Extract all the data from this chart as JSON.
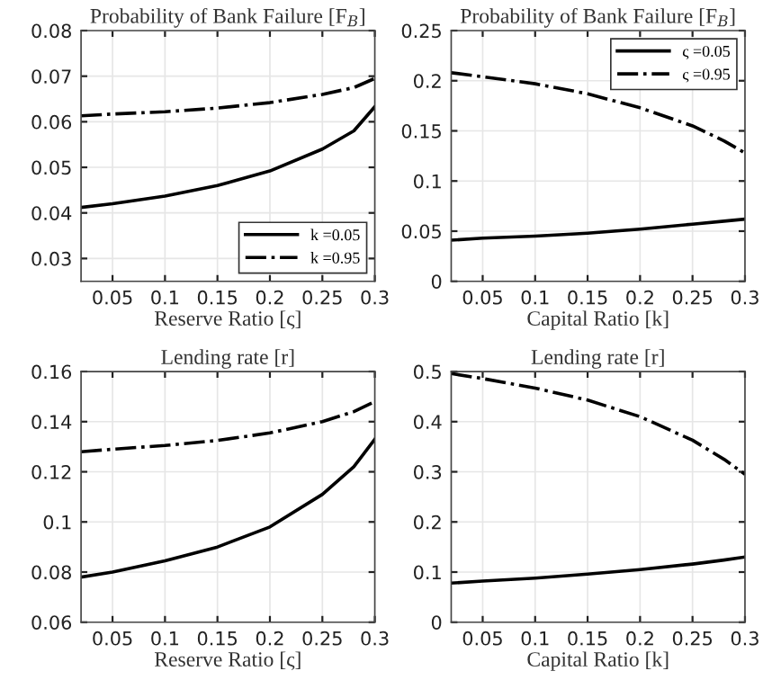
{
  "chart_data": [
    {
      "type": "line",
      "title": "Probability of Bank Failure [F$_{B}$]",
      "xlabel": "Reserve Ratio [ς]",
      "x": [
        0.02,
        0.05,
        0.1,
        0.15,
        0.2,
        0.25,
        0.28,
        0.3
      ],
      "xlim": [
        0.02,
        0.3
      ],
      "xticks": [
        0.05,
        0.1,
        0.15,
        0.2,
        0.25,
        0.3
      ],
      "ylim": [
        0.025,
        0.08
      ],
      "yticks": [
        0.03,
        0.04,
        0.05,
        0.06,
        0.07,
        0.08
      ],
      "grid": true,
      "legend": "bottom right",
      "series": [
        {
          "name": "k =0.05",
          "color": "#000000",
          "line_style": "solid",
          "values": [
            0.0412,
            0.042,
            0.0437,
            0.046,
            0.0492,
            0.054,
            0.058,
            0.0633
          ]
        },
        {
          "name": "k =0.95",
          "color": "#000000",
          "line_style": "dashdot",
          "values": [
            0.0613,
            0.0617,
            0.0622,
            0.063,
            0.0642,
            0.066,
            0.0675,
            0.0695
          ]
        }
      ]
    },
    {
      "type": "line",
      "title": "Probability of Bank Failure [F$_{B}$]",
      "xlabel": "Capital Ratio [k]",
      "x": [
        0.02,
        0.05,
        0.1,
        0.15,
        0.2,
        0.25,
        0.28,
        0.3
      ],
      "xlim": [
        0.02,
        0.3
      ],
      "xticks": [
        0.05,
        0.1,
        0.15,
        0.2,
        0.25,
        0.3
      ],
      "ylim": [
        0,
        0.25
      ],
      "yticks": [
        0,
        0.05,
        0.1,
        0.15,
        0.2,
        0.25
      ],
      "grid": true,
      "legend": "top right",
      "series": [
        {
          "name": "ς =0.05",
          "color": "#000000",
          "line_style": "solid",
          "values": [
            0.041,
            0.043,
            0.045,
            0.048,
            0.052,
            0.057,
            0.06,
            0.062
          ]
        },
        {
          "name": "ς =0.95",
          "color": "#000000",
          "line_style": "dashdot",
          "values": [
            0.208,
            0.204,
            0.197,
            0.187,
            0.173,
            0.155,
            0.14,
            0.128
          ]
        }
      ]
    },
    {
      "type": "line",
      "title": "Lending rate [r]",
      "xlabel": "Reserve Ratio [ς]",
      "x": [
        0.02,
        0.05,
        0.1,
        0.15,
        0.2,
        0.25,
        0.28,
        0.3
      ],
      "xlim": [
        0.02,
        0.3
      ],
      "xticks": [
        0.05,
        0.1,
        0.15,
        0.2,
        0.25,
        0.3
      ],
      "ylim": [
        0.06,
        0.16
      ],
      "yticks": [
        0.06,
        0.08,
        0.1,
        0.12,
        0.14,
        0.16
      ],
      "grid": true,
      "series": [
        {
          "color": "#000000",
          "line_style": "solid",
          "values": [
            0.078,
            0.08,
            0.0845,
            0.09,
            0.098,
            0.111,
            0.122,
            0.133
          ]
        },
        {
          "color": "#000000",
          "line_style": "dashdot",
          "values": [
            0.128,
            0.129,
            0.1305,
            0.1325,
            0.1355,
            0.14,
            0.144,
            0.148
          ]
        }
      ]
    },
    {
      "type": "line",
      "title": "Lending rate [r]",
      "xlabel": "Capital Ratio [k]",
      "x": [
        0.02,
        0.05,
        0.1,
        0.15,
        0.2,
        0.25,
        0.28,
        0.3
      ],
      "xlim": [
        0.02,
        0.3
      ],
      "xticks": [
        0.05,
        0.1,
        0.15,
        0.2,
        0.25,
        0.3
      ],
      "ylim": [
        0,
        0.5
      ],
      "yticks": [
        0,
        0.1,
        0.2,
        0.3,
        0.4,
        0.5
      ],
      "grid": true,
      "series": [
        {
          "color": "#000000",
          "line_style": "solid",
          "values": [
            0.078,
            0.082,
            0.088,
            0.096,
            0.105,
            0.116,
            0.124,
            0.13
          ]
        },
        {
          "color": "#000000",
          "line_style": "dashdot",
          "values": [
            0.496,
            0.486,
            0.467,
            0.443,
            0.41,
            0.363,
            0.325,
            0.295
          ]
        }
      ]
    }
  ]
}
